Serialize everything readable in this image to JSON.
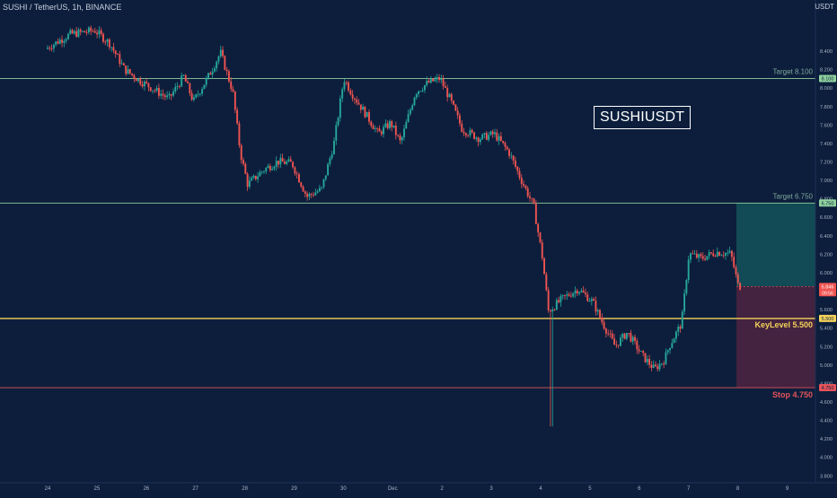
{
  "header": {
    "title": "SUSHI / TetherUS, 1h, BINANCE",
    "currency": "USDT",
    "symbol_label": "SUSHIUSDT"
  },
  "colors": {
    "background": "#0c1e3c",
    "up": "#26a69a",
    "down": "#ef5350",
    "target_line": "#8fd19e",
    "keylevel_line": "#f5d35a",
    "stop_line": "#e5535a",
    "profit_zone": "#14525a",
    "loss_zone": "#4a2440",
    "axis_text": "#a8b3c5"
  },
  "chart_data": {
    "type": "candlestick",
    "title": "SUSHI / TetherUS, 1h, BINANCE",
    "y_unit": "USDT",
    "ylim": [
      3.72,
      8.95
    ],
    "y_ticks": [
      "8.400",
      "8.200",
      "8.000",
      "7.800",
      "7.600",
      "7.400",
      "7.200",
      "7.000",
      "6.800",
      "6.600",
      "6.400",
      "6.200",
      "6.000",
      "5.800",
      "5.600",
      "5.400",
      "5.200",
      "5.000",
      "4.800",
      "4.600",
      "4.400",
      "4.200",
      "4.000",
      "3.800"
    ],
    "x_ticks": [
      "24",
      "25",
      "26",
      "27",
      "28",
      "29",
      "30",
      "Dec",
      "2",
      "3",
      "4",
      "5",
      "6",
      "7",
      "8",
      "9"
    ],
    "grid": false,
    "levels": [
      {
        "name": "Target",
        "value": 8.1,
        "label": "Target 8.100",
        "badge": "8.100"
      },
      {
        "name": "Target",
        "value": 6.75,
        "label": "Target 6.750",
        "badge": "6.750"
      },
      {
        "name": "KeyLevel",
        "value": 5.5,
        "label": "KeyLevel 5.500",
        "badge": "5.500"
      },
      {
        "name": "Stop",
        "value": 4.75,
        "label": "Stop 4.750",
        "badge": "4.750"
      }
    ],
    "current_price": {
      "value": 5.846,
      "badge": "5.846",
      "countdown": "09:56"
    },
    "position": {
      "entry": 5.846,
      "target": 6.75,
      "stop": 4.75
    },
    "price_path": [
      [
        0,
        8.42
      ],
      [
        0.5,
        8.58
      ],
      [
        1.0,
        8.62
      ],
      [
        1.3,
        8.48
      ],
      [
        1.6,
        8.2
      ],
      [
        1.9,
        8.08
      ],
      [
        2.2,
        7.98
      ],
      [
        2.5,
        7.88
      ],
      [
        2.8,
        8.12
      ],
      [
        3.0,
        7.85
      ],
      [
        3.3,
        8.12
      ],
      [
        3.55,
        8.38
      ],
      [
        3.8,
        7.95
      ],
      [
        3.95,
        7.3
      ],
      [
        4.1,
        6.95
      ],
      [
        4.4,
        7.1
      ],
      [
        4.7,
        7.2
      ],
      [
        5.0,
        7.18
      ],
      [
        5.3,
        6.82
      ],
      [
        5.6,
        6.9
      ],
      [
        5.85,
        7.4
      ],
      [
        6.05,
        8.1
      ],
      [
        6.2,
        7.95
      ],
      [
        6.45,
        7.75
      ],
      [
        6.75,
        7.5
      ],
      [
        7.0,
        7.62
      ],
      [
        7.2,
        7.4
      ],
      [
        7.5,
        7.95
      ],
      [
        7.75,
        8.05
      ],
      [
        8.0,
        8.1
      ],
      [
        8.2,
        7.88
      ],
      [
        8.45,
        7.55
      ],
      [
        8.8,
        7.45
      ],
      [
        9.1,
        7.5
      ],
      [
        9.4,
        7.3
      ],
      [
        9.65,
        7.0
      ],
      [
        9.9,
        6.72
      ],
      [
        10.08,
        6.15
      ],
      [
        10.2,
        5.58
      ],
      [
        10.5,
        5.72
      ],
      [
        10.8,
        5.82
      ],
      [
        11.1,
        5.68
      ],
      [
        11.3,
        5.45
      ],
      [
        11.55,
        5.2
      ],
      [
        11.8,
        5.35
      ],
      [
        12.1,
        5.1
      ],
      [
        12.35,
        4.95
      ],
      [
        12.55,
        5.05
      ],
      [
        12.65,
        5.2
      ],
      [
        12.9,
        5.45
      ],
      [
        13.05,
        6.2
      ],
      [
        13.3,
        6.15
      ],
      [
        13.6,
        6.22
      ],
      [
        13.9,
        6.2
      ],
      [
        14.05,
        5.85
      ]
    ]
  }
}
